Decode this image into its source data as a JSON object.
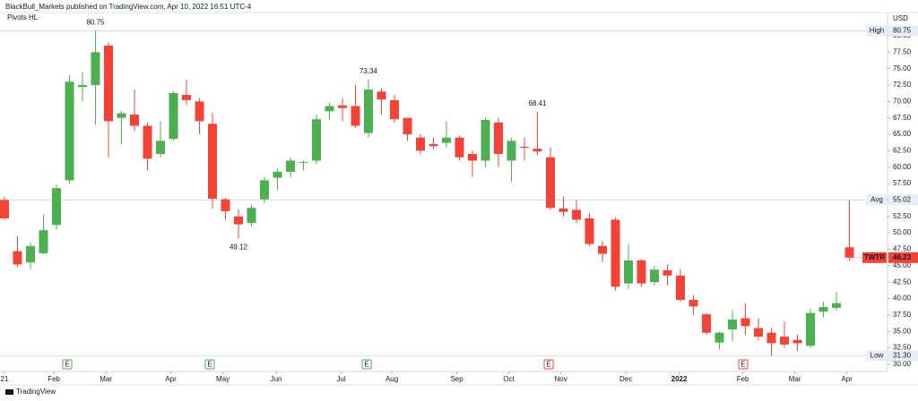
{
  "header": "BlackBull_Markets published on TradingView.com, Apr 10, 2022 16:51 UTC-4",
  "indicator": "Pivots HL",
  "currency": "USD",
  "brand": "TradingView",
  "chart_data": {
    "type": "candlestick",
    "up_color": "#4caf50",
    "down_color": "#f44336",
    "open": [
      55,
      47.2,
      45.5,
      46.9,
      51.2,
      58,
      72.2,
      72.5,
      78.5,
      67.5,
      68,
      66.3,
      62,
      64.3,
      71,
      70,
      66.6,
      55.1,
      52.5,
      51.5,
      55.1,
      58.4,
      59.3,
      60.7,
      61,
      68.5,
      69.4,
      69.3,
      65.2,
      71.5,
      70.2,
      67.5,
      64.5,
      63.5,
      63.7,
      64.5,
      62,
      61,
      66.8,
      61,
      63.1,
      62.8,
      61.5,
      53.7,
      53.5,
      52.2,
      48,
      52,
      42.3,
      45.8,
      42.5,
      44.3,
      43.5,
      39.8,
      37.6,
      33.3,
      35.3,
      37,
      35.5,
      34.8,
      34.2,
      33.7,
      32.8,
      38,
      38.6,
      47.8
    ],
    "high": [
      55.5,
      49.5,
      48.5,
      52.8,
      57.4,
      74,
      74.5,
      80.75,
      79,
      68.5,
      71.8,
      66.8,
      67,
      71.5,
      73.3,
      70.5,
      68.3,
      55.3,
      53.6,
      54.3,
      58.5,
      59.8,
      61.5,
      61,
      68,
      69.8,
      70.5,
      72.5,
      73.34,
      72,
      71,
      67.5,
      65,
      64.5,
      67,
      64.8,
      62.5,
      67.5,
      67.5,
      64.5,
      64.5,
      68.41,
      63,
      55.5,
      55,
      53,
      48.8,
      52.3,
      48.3,
      46,
      45,
      45.2,
      44.5,
      40.5,
      37.8,
      35,
      38.2,
      39.3,
      37,
      35.5,
      36.5,
      34.5,
      38.5,
      39.5,
      41,
      55
    ],
    "low": [
      52,
      44.8,
      44.5,
      46.8,
      50.5,
      57.5,
      70,
      66.5,
      61.5,
      63.5,
      65.5,
      59.5,
      61.5,
      64,
      69.5,
      65,
      53.7,
      52,
      49.12,
      51,
      54.5,
      56.5,
      58.5,
      59.5,
      60.5,
      67.2,
      67,
      66,
      64.5,
      68,
      66.8,
      64,
      62,
      62.8,
      63,
      61,
      58.5,
      60,
      60,
      57.8,
      61,
      61.8,
      53.5,
      52.5,
      51.5,
      48,
      45.5,
      41.2,
      41.5,
      41.8,
      42,
      42,
      39.5,
      37.5,
      34.5,
      32.3,
      33.5,
      34.5,
      33.7,
      31.3,
      32.5,
      32,
      32.5,
      37.2,
      38.2,
      45.8
    ],
    "close": [
      52.2,
      45.2,
      48,
      50.4,
      56.8,
      73,
      72.5,
      77.5,
      67,
      68.2,
      66.3,
      61.3,
      64,
      71.3,
      70.2,
      67,
      55.2,
      53.3,
      51.3,
      53.8,
      58,
      59.3,
      61,
      60.8,
      67.3,
      69.3,
      69,
      66.3,
      71.8,
      70.3,
      67.3,
      65,
      62.5,
      63.2,
      64.5,
      61.5,
      61,
      67.2,
      62,
      64,
      63,
      62.4,
      53.8,
      53.2,
      52,
      48.3,
      46.8,
      41.8,
      45.8,
      42.3,
      44.4,
      43.5,
      39.8,
      38.8,
      34.8,
      34.8,
      36.8,
      35.8,
      34.2,
      33.2,
      33,
      33.2,
      37.8,
      38.7,
      39.3,
      46.23
    ],
    "xticks": [
      {
        "value": 0,
        "label": "21"
      },
      {
        "value": 3.8,
        "label": "Feb"
      },
      {
        "value": 7.8,
        "label": "Mar"
      },
      {
        "value": 12.8,
        "label": "Apr"
      },
      {
        "value": 16.8,
        "label": "May"
      },
      {
        "value": 20.9,
        "label": "Jun"
      },
      {
        "value": 25.9,
        "label": "Jul"
      },
      {
        "value": 29.8,
        "label": "Aug"
      },
      {
        "value": 34.8,
        "label": "Sep"
      },
      {
        "value": 38.8,
        "label": "Oct"
      },
      {
        "value": 42.8,
        "label": "Nov"
      },
      {
        "value": 47.8,
        "label": "Dec"
      },
      {
        "value": 51.9,
        "label": "2022"
      },
      {
        "value": 56.8,
        "label": "Feb"
      },
      {
        "value": 60.8,
        "label": "Mar"
      },
      {
        "value": 64.8,
        "label": "Apr"
      }
    ],
    "ylim": [
      28.9,
      83.4
    ],
    "yticks": [
      {
        "value": 30,
        "label": "30.00"
      },
      {
        "value": 32.5,
        "label": "32.50"
      },
      {
        "value": 35,
        "label": "35.00"
      },
      {
        "value": 37.5,
        "label": "37.50"
      },
      {
        "value": 40,
        "label": "40.00"
      },
      {
        "value": 42.5,
        "label": "42.50"
      },
      {
        "value": 45,
        "label": "45.00"
      },
      {
        "value": 47.5,
        "label": "47.50"
      },
      {
        "value": 50,
        "label": "50.00"
      },
      {
        "value": 52.5,
        "label": "52.50"
      },
      {
        "value": 55,
        "label": "55.00"
      },
      {
        "value": 57.5,
        "label": "57.50"
      },
      {
        "value": 60,
        "label": "60.00"
      },
      {
        "value": 62.5,
        "label": "62.50"
      },
      {
        "value": 65,
        "label": "65.00"
      },
      {
        "value": 67.5,
        "label": "67.50"
      },
      {
        "value": 70,
        "label": "70.00"
      },
      {
        "value": 72.5,
        "label": "72.50"
      },
      {
        "value": 75,
        "label": "75.00"
      },
      {
        "value": 77.5,
        "label": "77.50"
      },
      {
        "value": 80,
        "label": "80.00"
      }
    ],
    "annotations": [
      80.75,
      73.34,
      68.41,
      49.12
    ],
    "levels": [
      {
        "name": "High",
        "value": 80.75
      },
      {
        "name": "Avg",
        "value": 55.02
      },
      {
        "name": "Low",
        "value": 31.3,
        "label": "31.30"
      }
    ],
    "last_price": {
      "symbol": "TWTR",
      "value": 46.23
    },
    "earnings_markers": [
      {
        "label": "E",
        "color": "#4caf50"
      },
      {
        "label": "E",
        "color": "#4caf50"
      },
      {
        "label": "E",
        "color": "#4caf50"
      },
      {
        "label": "E",
        "color": "#f44336"
      },
      {
        "label": "E",
        "color": "#f44336"
      }
    ],
    "grid": false
  }
}
